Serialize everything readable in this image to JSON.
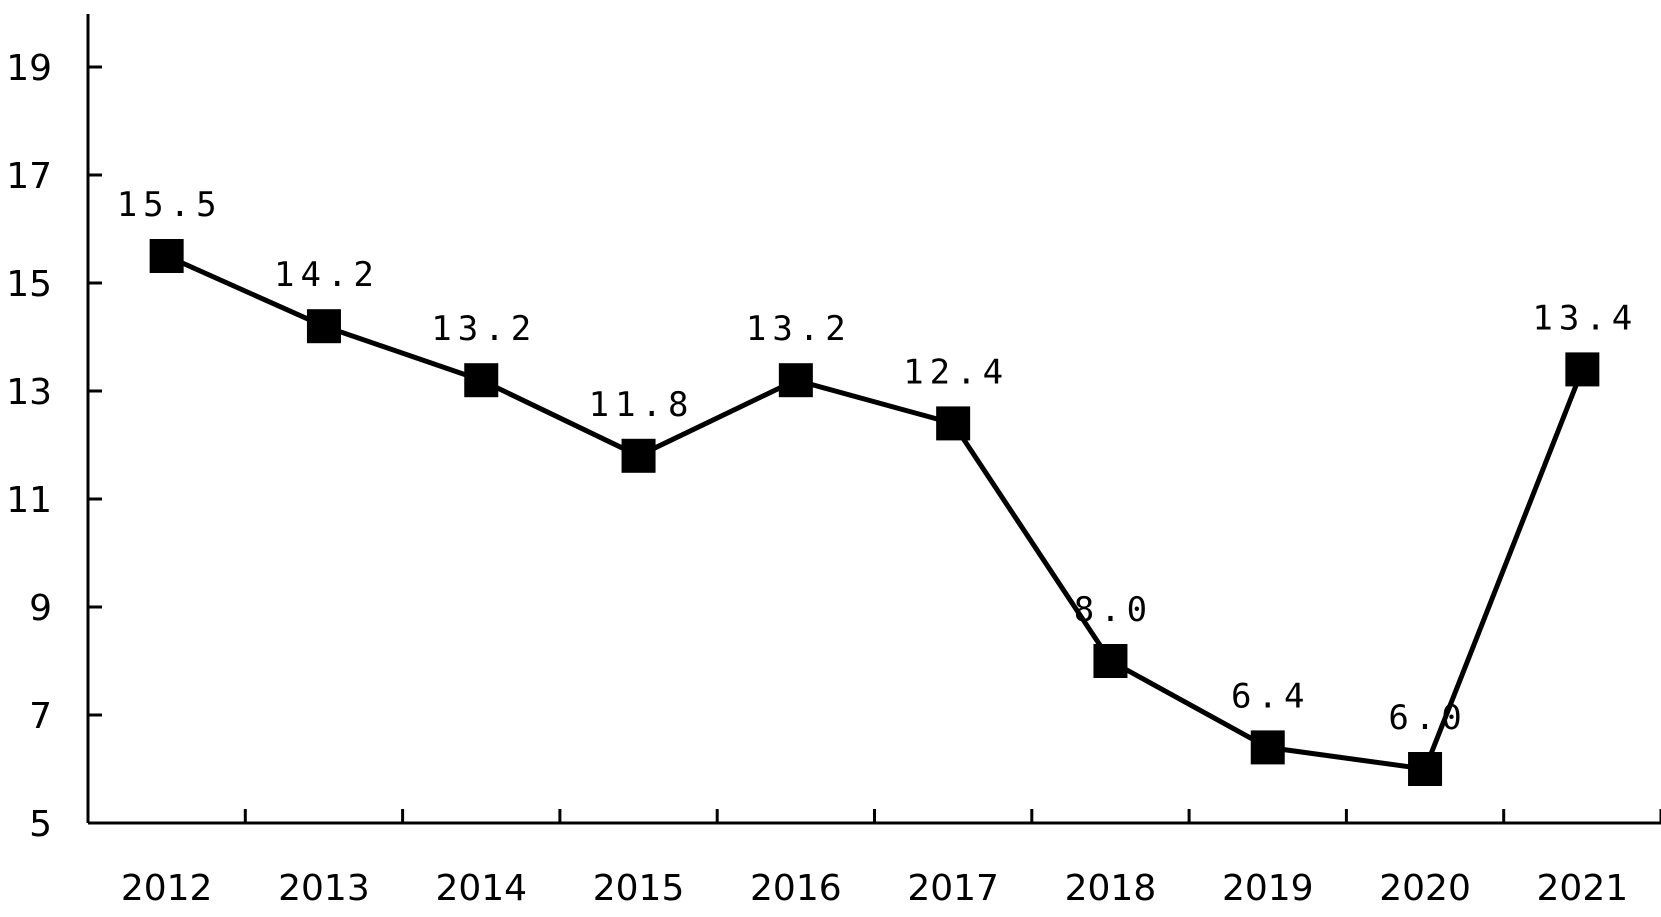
{
  "chart_data": {
    "type": "line",
    "categories": [
      "2012",
      "2013",
      "2014",
      "2015",
      "2016",
      "2017",
      "2018",
      "2019",
      "2020",
      "2021"
    ],
    "values": [
      15.5,
      14.2,
      13.2,
      11.8,
      13.2,
      12.4,
      8.0,
      6.4,
      6.0,
      13.4
    ],
    "data_labels": [
      "15.5",
      "14.2",
      "13.2",
      "11.8",
      "13.2",
      "12.4",
      "8.0",
      "6.4",
      "6.0",
      "13.4"
    ],
    "ylim": [
      5,
      20
    ],
    "yticks": [
      5,
      7,
      9,
      11,
      13,
      15,
      17,
      19
    ],
    "ytick_labels": [
      "5",
      "7",
      "9",
      "11",
      "13",
      "15",
      "17",
      "19"
    ],
    "title": "",
    "xlabel": "",
    "ylabel": "",
    "grid": false,
    "marker": "square",
    "line_color": "#000000"
  }
}
